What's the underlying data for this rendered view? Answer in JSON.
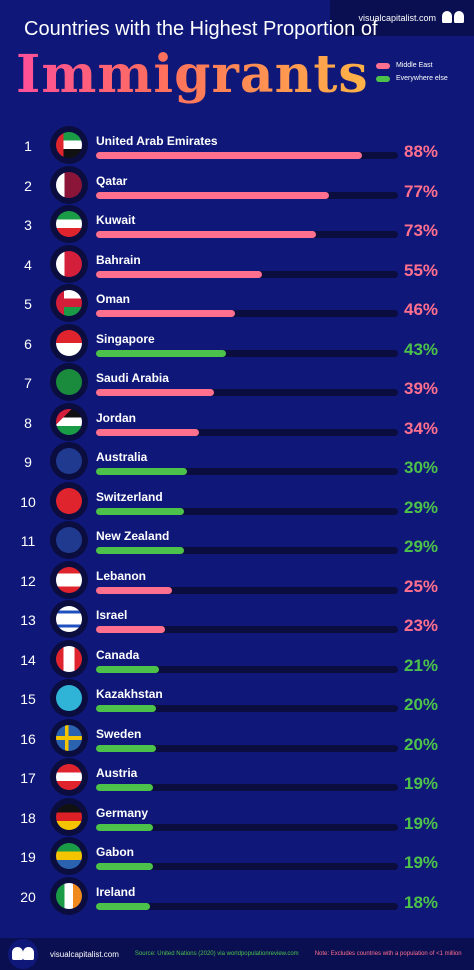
{
  "brand": "visualcapitalist.com",
  "chart_data": {
    "type": "bar",
    "subtitle": "Countries with the Highest Proportion of",
    "title": "Immigrants",
    "legend": [
      {
        "name": "Middle East",
        "color": "#ff6f8e"
      },
      {
        "name": "Everywhere else",
        "color": "#4cc24a"
      }
    ],
    "xlim": [
      0,
      100
    ],
    "rows": [
      {
        "rank": "1",
        "country": "United Arab Emirates",
        "value": 88,
        "label": "88%",
        "region": "Middle East",
        "flag": "uae-flag"
      },
      {
        "rank": "2",
        "country": "Qatar",
        "value": 77,
        "label": "77%",
        "region": "Middle East",
        "flag": "qatar-flag"
      },
      {
        "rank": "3",
        "country": "Kuwait",
        "value": 73,
        "label": "73%",
        "region": "Middle East",
        "flag": "kuwait-flag"
      },
      {
        "rank": "4",
        "country": "Bahrain",
        "value": 55,
        "label": "55%",
        "region": "Middle East",
        "flag": "bahrain-flag"
      },
      {
        "rank": "5",
        "country": "Oman",
        "value": 46,
        "label": "46%",
        "region": "Middle East",
        "flag": "oman-flag"
      },
      {
        "rank": "6",
        "country": "Singapore",
        "value": 43,
        "label": "43%",
        "region": "Everywhere else",
        "flag": "singapore-flag"
      },
      {
        "rank": "7",
        "country": "Saudi Arabia",
        "value": 39,
        "label": "39%",
        "region": "Middle East",
        "flag": "saudi-arabia-flag"
      },
      {
        "rank": "8",
        "country": "Jordan",
        "value": 34,
        "label": "34%",
        "region": "Middle East",
        "flag": "jordan-flag"
      },
      {
        "rank": "9",
        "country": "Australia",
        "value": 30,
        "label": "30%",
        "region": "Everywhere else",
        "flag": "australia-flag"
      },
      {
        "rank": "10",
        "country": "Switzerland",
        "value": 29,
        "label": "29%",
        "region": "Everywhere else",
        "flag": "switzerland-flag"
      },
      {
        "rank": "11",
        "country": "New Zealand",
        "value": 29,
        "label": "29%",
        "region": "Everywhere else",
        "flag": "new-zealand-flag"
      },
      {
        "rank": "12",
        "country": "Lebanon",
        "value": 25,
        "label": "25%",
        "region": "Middle East",
        "flag": "lebanon-flag"
      },
      {
        "rank": "13",
        "country": "Israel",
        "value": 23,
        "label": "23%",
        "region": "Middle East",
        "flag": "israel-flag"
      },
      {
        "rank": "14",
        "country": "Canada",
        "value": 21,
        "label": "21%",
        "region": "Everywhere else",
        "flag": "canada-flag"
      },
      {
        "rank": "15",
        "country": "Kazakhstan",
        "value": 20,
        "label": "20%",
        "region": "Everywhere else",
        "flag": "kazakhstan-flag"
      },
      {
        "rank": "16",
        "country": "Sweden",
        "value": 20,
        "label": "20%",
        "region": "Everywhere else",
        "flag": "sweden-flag"
      },
      {
        "rank": "17",
        "country": "Austria",
        "value": 19,
        "label": "19%",
        "region": "Everywhere else",
        "flag": "austria-flag"
      },
      {
        "rank": "18",
        "country": "Germany",
        "value": 19,
        "label": "19%",
        "region": "Everywhere else",
        "flag": "germany-flag"
      },
      {
        "rank": "19",
        "country": "Gabon",
        "value": 19,
        "label": "19%",
        "region": "Everywhere else",
        "flag": "gabon-flag"
      },
      {
        "rank": "20",
        "country": "Ireland",
        "value": 18,
        "label": "18%",
        "region": "Everywhere else",
        "flag": "ireland-flag"
      }
    ]
  },
  "footer": {
    "brand": "visualcapitalist.com",
    "source": "Source: United Nations (2020) via worldpopulationreview.com",
    "note": "Note: Excludes countries with a population of <1 million"
  }
}
